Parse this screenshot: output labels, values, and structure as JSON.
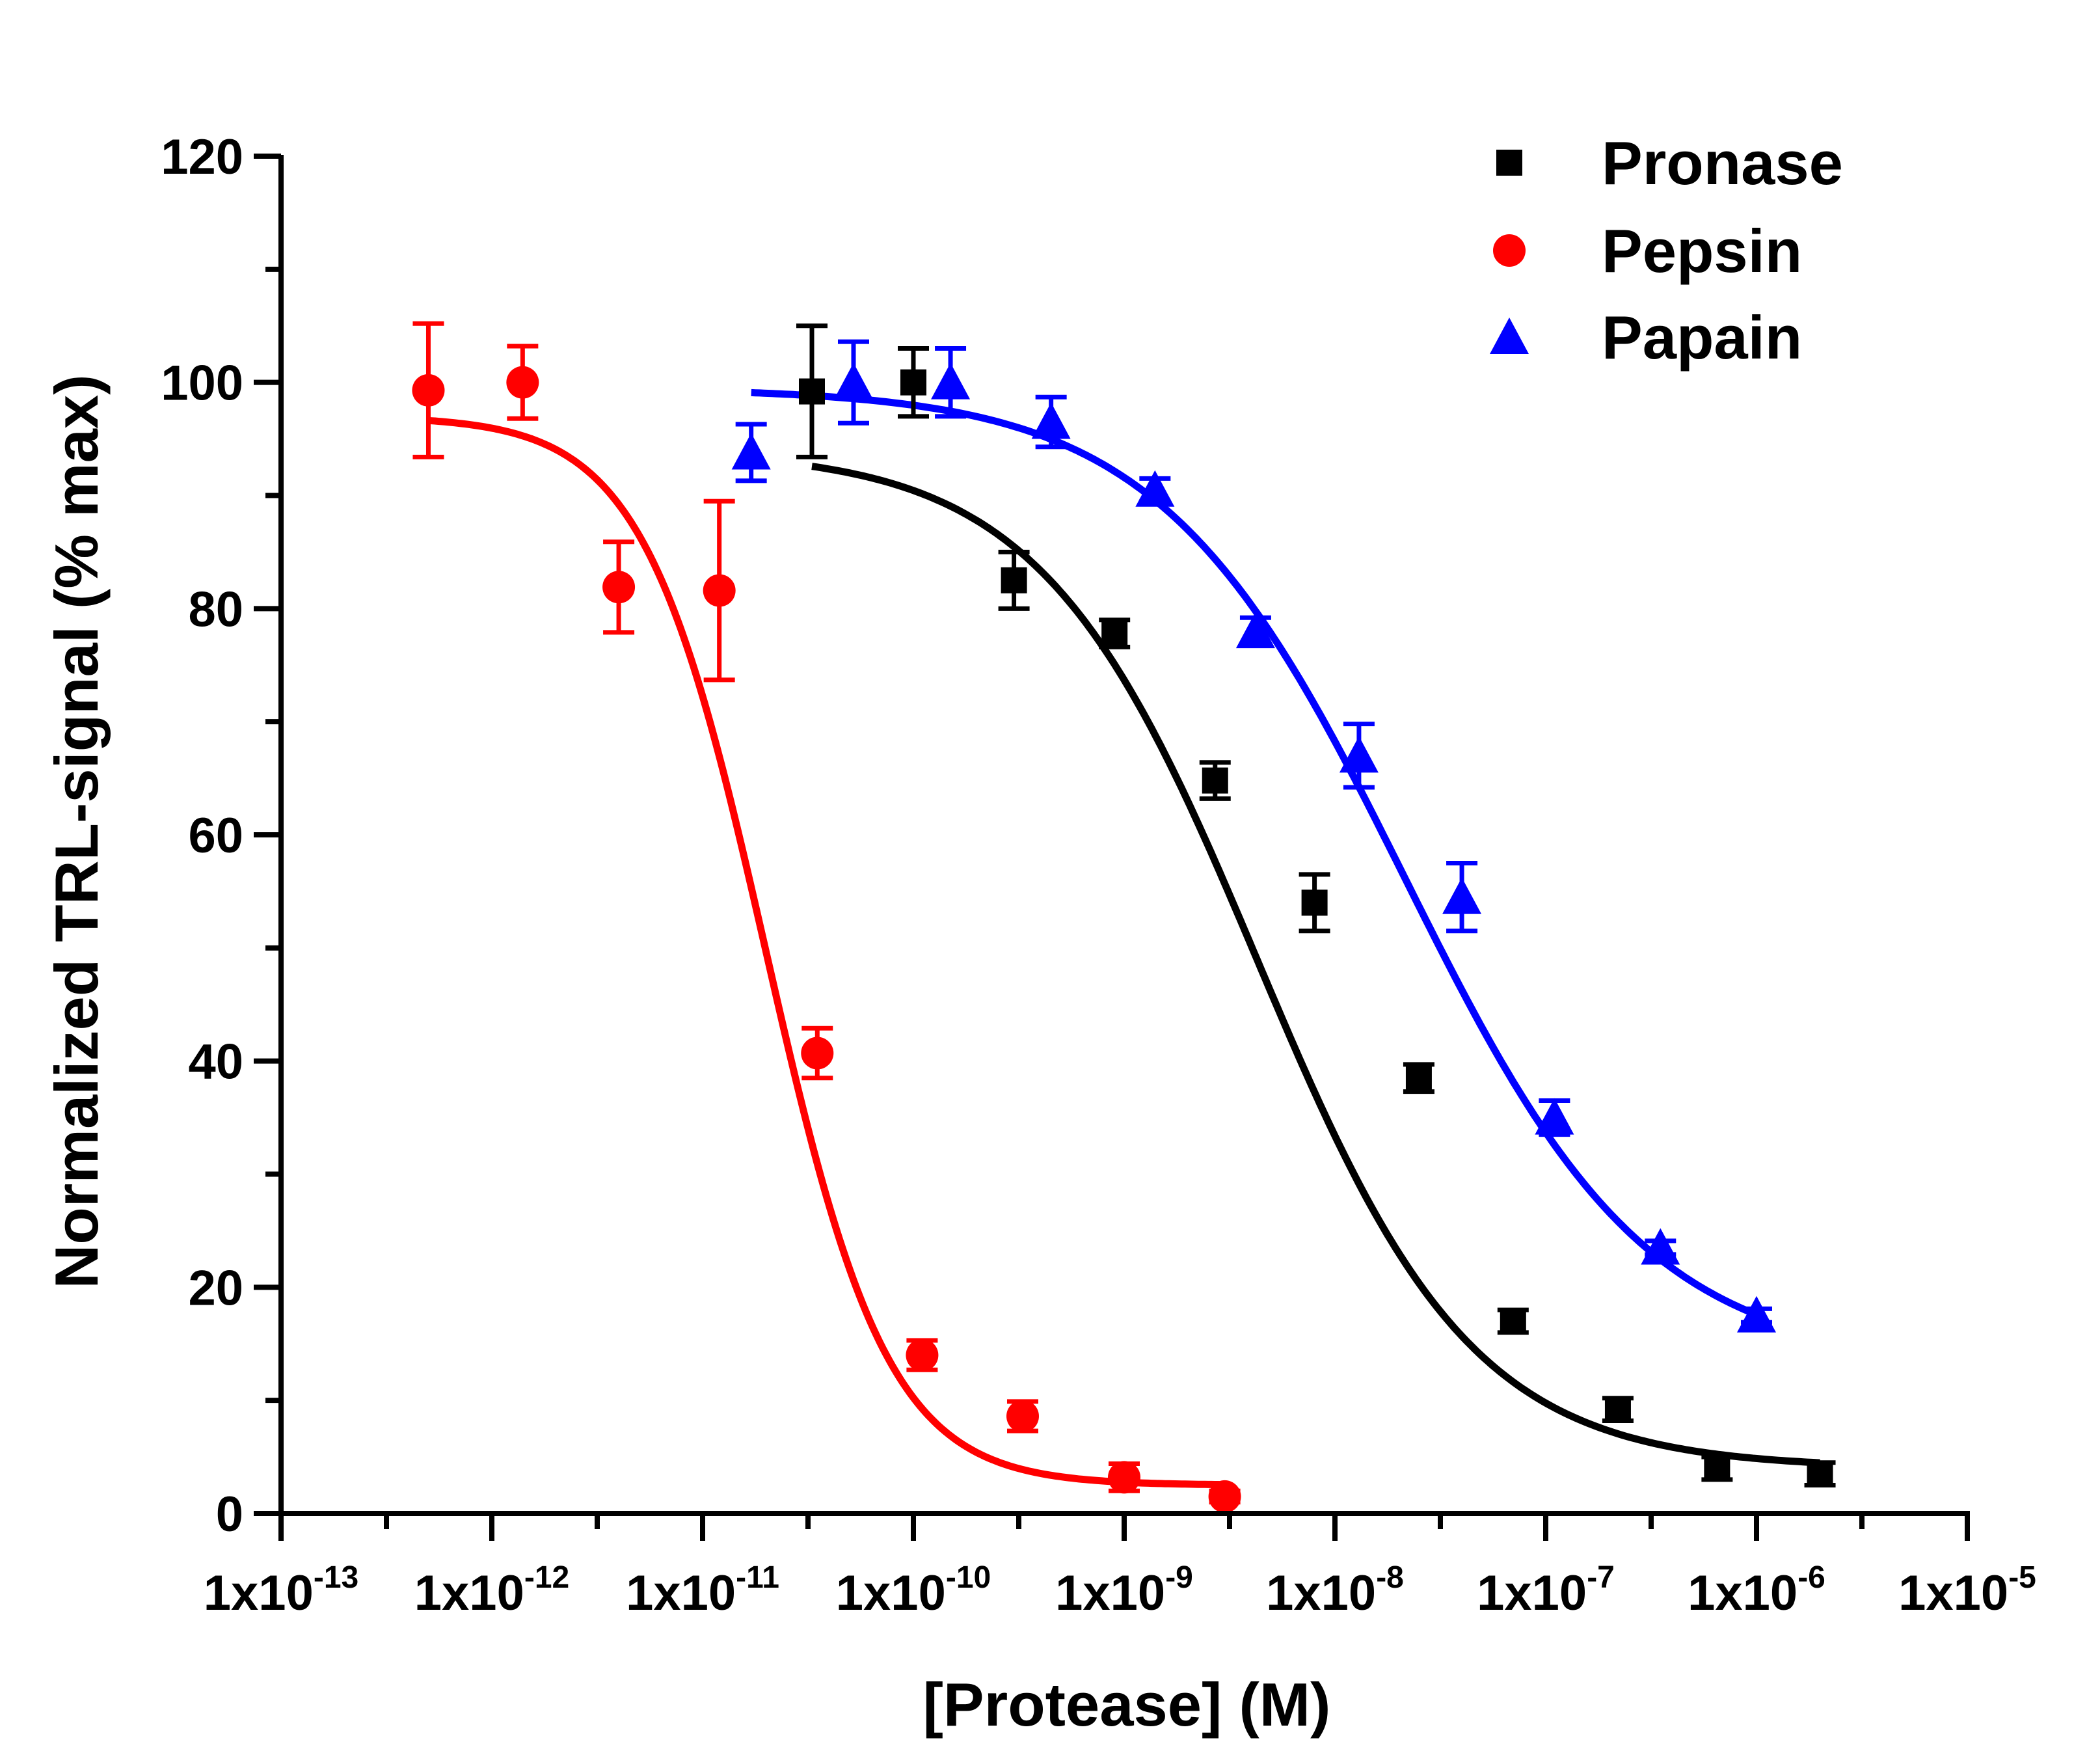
{
  "chart_data": {
    "type": "scatter",
    "title": "",
    "xlabel": "[Protease] (M)",
    "ylabel": "Normalized TRL-signal (% max)",
    "xscale": "log",
    "xlim": [
      1e-13,
      1e-05
    ],
    "ylim": [
      0,
      120
    ],
    "grid": false,
    "legend_position": "top-right",
    "y_ticks": [
      "0",
      "20",
      "40",
      "60",
      "80",
      "100",
      "120"
    ],
    "x_ticks": [
      {
        "base": "1x10",
        "exp": "-13"
      },
      {
        "base": "1x10",
        "exp": "-12"
      },
      {
        "base": "1x10",
        "exp": "-11"
      },
      {
        "base": "1x10",
        "exp": "-10"
      },
      {
        "base": "1x10",
        "exp": "-9"
      },
      {
        "base": "1x10",
        "exp": "-8"
      },
      {
        "base": "1x10",
        "exp": "-7"
      },
      {
        "base": "1x10",
        "exp": "-6"
      },
      {
        "base": "1x10",
        "exp": "-5"
      }
    ],
    "series": [
      {
        "name": "Pronase",
        "color": "#000000",
        "marker": "square",
        "points": [
          {
            "x": 3.3e-11,
            "y": 99.2,
            "err": 5.8
          },
          {
            "x": 1e-10,
            "y": 100.0,
            "err": 3.0
          },
          {
            "x": 3e-10,
            "y": 82.5,
            "err": 2.5
          },
          {
            "x": 9e-10,
            "y": 77.8,
            "err": 1.2
          },
          {
            "x": 2.7e-09,
            "y": 64.8,
            "err": 1.6
          },
          {
            "x": 8e-09,
            "y": 54.0,
            "err": 2.5
          },
          {
            "x": 2.5e-08,
            "y": 38.5,
            "err": 1.2
          },
          {
            "x": 7e-08,
            "y": 17.0,
            "err": 1.0
          },
          {
            "x": 2.2e-07,
            "y": 9.2,
            "err": 1.0
          },
          {
            "x": 6.5e-07,
            "y": 4.0,
            "err": 1.0
          },
          {
            "x": 2e-06,
            "y": 3.5,
            "err": 1.0
          }
        ],
        "fit": {
          "top": 94.0,
          "bottom": 4.0,
          "logEC50": -8.37,
          "hill": 0.85,
          "xmin": 3.3e-11,
          "xmax": 2e-06
        }
      },
      {
        "name": "Pepsin",
        "color": "#ff0000",
        "marker": "circle",
        "points": [
          {
            "x": 5e-13,
            "y": 99.3,
            "err": 5.9
          },
          {
            "x": 1.4e-12,
            "y": 100.0,
            "err": 3.2
          },
          {
            "x": 4e-12,
            "y": 81.9,
            "err": 4.0
          },
          {
            "x": 1.2e-11,
            "y": 81.6,
            "err": 7.9
          },
          {
            "x": 3.5e-11,
            "y": 40.7,
            "err": 2.2
          },
          {
            "x": 1.1e-10,
            "y": 14.0,
            "err": 1.3
          },
          {
            "x": 3.3e-10,
            "y": 8.6,
            "err": 1.3
          },
          {
            "x": 1e-09,
            "y": 3.2,
            "err": 1.2
          },
          {
            "x": 3e-09,
            "y": 1.5,
            "err": 0.5
          }
        ],
        "fit": {
          "top": 97.0,
          "bottom": 2.5,
          "logEC50": -10.7,
          "hill": 1.5,
          "xmin": 5e-13,
          "xmax": 3e-09
        }
      },
      {
        "name": "Papain",
        "color": "#0000ff",
        "marker": "triangle",
        "points": [
          {
            "x": 1.7e-11,
            "y": 93.8,
            "err": 2.5
          },
          {
            "x": 5.2e-11,
            "y": 100.0,
            "err": 3.6
          },
          {
            "x": 1.5e-10,
            "y": 100.0,
            "err": 3.0
          },
          {
            "x": 4.5e-10,
            "y": 96.5,
            "err": 2.2
          },
          {
            "x": 1.4e-09,
            "y": 90.5,
            "err": 1.0
          },
          {
            "x": 4.2e-09,
            "y": 78.0,
            "err": 1.2
          },
          {
            "x": 1.3e-08,
            "y": 67.0,
            "err": 2.8
          },
          {
            "x": 4e-08,
            "y": 54.5,
            "err": 3.0
          },
          {
            "x": 1.1e-07,
            "y": 35.0,
            "err": 1.5
          },
          {
            "x": 3.5e-07,
            "y": 23.5,
            "err": 0.6
          },
          {
            "x": 1e-06,
            "y": 17.5,
            "err": 0.6
          }
        ],
        "fit": {
          "top": 99.5,
          "bottom": 13.0,
          "logEC50": -7.67,
          "hill": 0.75,
          "xmin": 1.7e-11,
          "xmax": 1e-06
        }
      }
    ]
  }
}
